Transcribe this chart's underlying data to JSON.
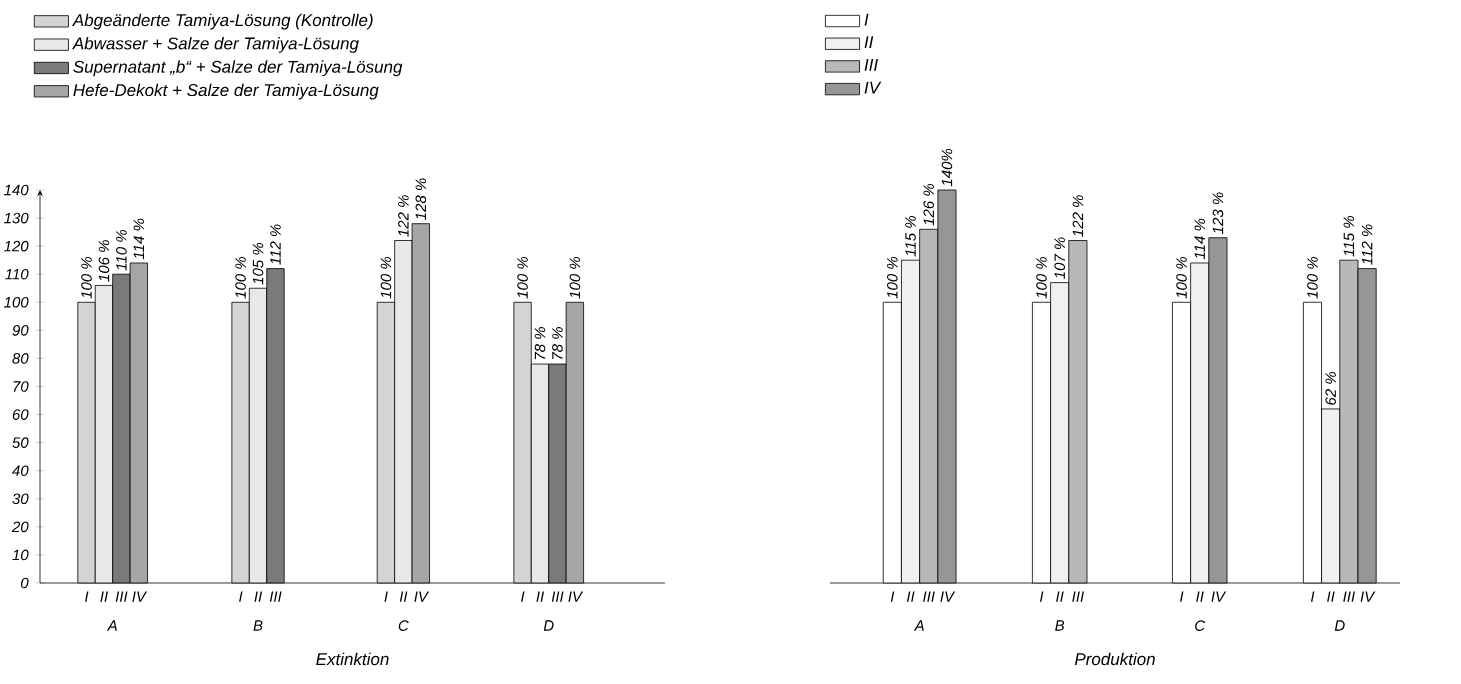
{
  "chart_data": [
    {
      "type": "bar",
      "xlabel": "Extinktion",
      "categories": [
        "A",
        "B",
        "C",
        "D"
      ],
      "ylim": [
        0,
        140
      ],
      "yticks": [
        0,
        10,
        20,
        30,
        40,
        50,
        60,
        70,
        80,
        90,
        100,
        110,
        120,
        130,
        140
      ],
      "legend": "top left",
      "annotations": [
        "I",
        "II",
        "III",
        "IV"
      ],
      "series": [
        {
          "name": "Abgeänderte Tamiya-Lösung (Kontrolle)",
          "color": "#d4d4d4",
          "values": [
            100,
            100,
            100,
            100
          ],
          "value_labels": [
            "100 %",
            "100 %",
            "100 %",
            "100 %"
          ]
        },
        {
          "name": "Abwasser + Salze der Tamiya-Lösung",
          "color": "#e8e8e8",
          "values": [
            106,
            105,
            122,
            78
          ],
          "value_labels": [
            "106 %",
            "105 %",
            "122 %",
            "78 %"
          ]
        },
        {
          "name": "Supernatant „b“ + Salze der Tamiya-Lösung",
          "color": "#7a7a7a",
          "values": [
            110,
            112,
            null,
            78
          ],
          "value_labels": [
            "110 %",
            "112 %",
            null,
            "78 %"
          ]
        },
        {
          "name": "Hefe-Dekokt + Salze der Tamiya-Lösung",
          "color": "#a6a6a6",
          "values": [
            114,
            null,
            128,
            100
          ],
          "value_labels": [
            "114 %",
            null,
            "128 %",
            "100 %"
          ]
        }
      ]
    },
    {
      "type": "bar",
      "xlabel": "Produktion",
      "categories": [
        "A",
        "B",
        "C",
        "D"
      ],
      "ylim": [
        0,
        140
      ],
      "tick_labels": "x",
      "legend": "top left",
      "series": [
        {
          "name": "I",
          "color": "#ffffff",
          "values": [
            100,
            100,
            100,
            100
          ],
          "value_labels": [
            "100 %",
            "100 %",
            "100 %",
            "100 %"
          ]
        },
        {
          "name": "II",
          "color": "#f0f0f0",
          "values": [
            115,
            107,
            114,
            62
          ],
          "value_labels": [
            "115 %",
            "107 %",
            "114 %",
            "62 %"
          ]
        },
        {
          "name": "III",
          "color": "#b8b8b8",
          "values": [
            126,
            122,
            null,
            115
          ],
          "value_labels": [
            "126 %",
            "122 %",
            null,
            "115 %"
          ]
        },
        {
          "name": "IV",
          "color": "#969696",
          "values": [
            140,
            null,
            123,
            112
          ],
          "value_labels": [
            "140%",
            null,
            "123 %",
            "112 %"
          ]
        }
      ]
    }
  ]
}
